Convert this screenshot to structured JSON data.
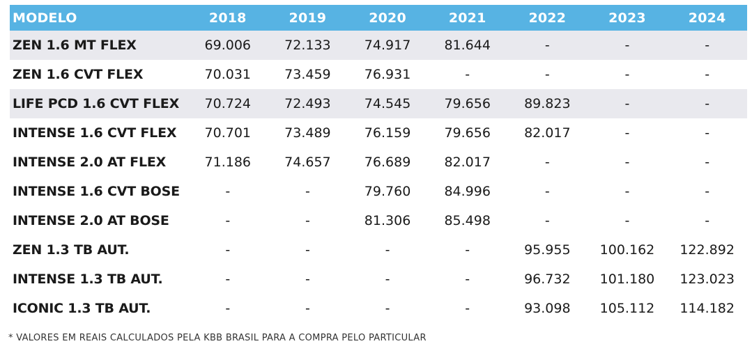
{
  "chart_data": {
    "type": "table",
    "header": {
      "model_label": "MODELO",
      "years": [
        "2018",
        "2019",
        "2020",
        "2021",
        "2022",
        "2023",
        "2024"
      ]
    },
    "rows": [
      {
        "model": "ZEN 1.6 MT FLEX",
        "values": [
          "69.006",
          "72.133",
          "74.917",
          "81.644",
          "-",
          "-",
          "-"
        ],
        "shaded": true
      },
      {
        "model": "ZEN 1.6 CVT FLEX",
        "values": [
          "70.031",
          "73.459",
          "76.931",
          "-",
          "-",
          "-",
          "-"
        ],
        "shaded": false
      },
      {
        "model": "LIFE PCD 1.6 CVT FLEX",
        "values": [
          "70.724",
          "72.493",
          "74.545",
          "79.656",
          "89.823",
          "-",
          "-"
        ],
        "shaded": true
      },
      {
        "model": "INTENSE 1.6 CVT FLEX",
        "values": [
          "70.701",
          "73.489",
          "76.159",
          "79.656",
          "82.017",
          "-",
          "-"
        ],
        "shaded": false
      },
      {
        "model": "INTENSE 2.0 AT FLEX",
        "values": [
          "71.186",
          "74.657",
          "76.689",
          "82.017",
          "-",
          "-",
          "-"
        ],
        "shaded": false
      },
      {
        "model": "INTENSE 1.6 CVT BOSE",
        "values": [
          "-",
          "-",
          "79.760",
          "84.996",
          "-",
          "-",
          "-"
        ],
        "shaded": false
      },
      {
        "model": "INTENSE 2.0 AT BOSE",
        "values": [
          "-",
          "-",
          "81.306",
          "85.498",
          "-",
          "-",
          "-"
        ],
        "shaded": false
      },
      {
        "model": "ZEN 1.3 TB AUT.",
        "values": [
          "-",
          "-",
          "-",
          "-",
          "95.955",
          "100.162",
          "122.892"
        ],
        "shaded": false
      },
      {
        "model": "INTENSE 1.3 TB AUT.",
        "values": [
          "-",
          "-",
          "-",
          "-",
          "96.732",
          "101.180",
          "123.023"
        ],
        "shaded": false
      },
      {
        "model": "ICONIC 1.3 TB AUT.",
        "values": [
          "-",
          "-",
          "-",
          "-",
          "93.098",
          "105.112",
          "114.182"
        ],
        "shaded": false
      }
    ],
    "footnote": "* VALORES EM REAIS CALCULADOS PELA KBB BRASIL PARA A COMPRA PELO PARTICULAR"
  },
  "colors": {
    "header_bg": "#57b3e3",
    "header_text": "#ffffff",
    "row_shade": "#e9e9ee",
    "text": "#1a1a1a"
  }
}
